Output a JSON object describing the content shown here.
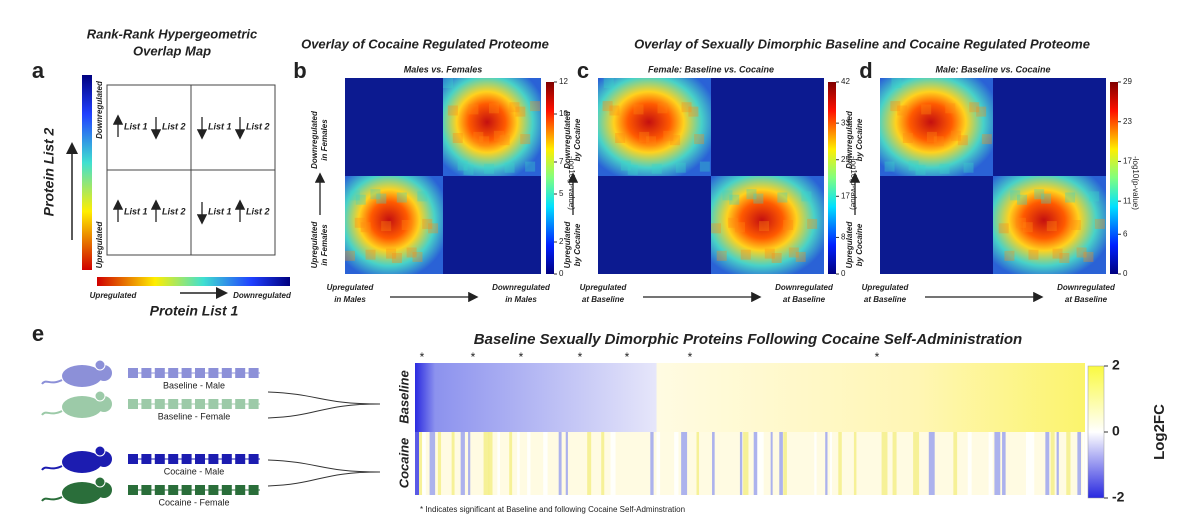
{
  "panel_a": {
    "letter": "a",
    "title_lines": [
      "Rank-Rank Hypergeometric",
      "Overlap Map"
    ],
    "y_axis_label": "Protein List 2",
    "y_top": "Downregulated",
    "y_bottom": "Upregulated",
    "x_axis_label": "Protein List 1",
    "x_left": "Upregulated",
    "x_right": "Downregulated",
    "quadrants": [
      {
        "list1": "List 1",
        "list2": "List 2"
      },
      {
        "list1": "List 1",
        "list2": "List 2"
      },
      {
        "list1": "List 1",
        "list2": "List 2"
      },
      {
        "list1": "List 1",
        "list2": "List 2"
      }
    ]
  },
  "overlay_titles": [
    "Overlay of Cocaine Regulated Proteome",
    "Overlay of Sexually Dimorphic Baseline and Cocaine Regulated Proteome"
  ],
  "heatmaps": [
    {
      "letter": "b",
      "subtitle": "Males vs. Females",
      "y_top_lines": [
        "Downregulated",
        "in Females"
      ],
      "y_bottom_lines": [
        "Upregulated",
        "in Females"
      ],
      "x_left_lines": [
        "Upregulated",
        "in Males"
      ],
      "x_right_lines": [
        "Downregulated",
        "in Males"
      ],
      "colorbar_label": "-log10(p-value)",
      "colorbar_ticks": [
        12,
        10,
        7,
        5,
        2,
        0
      ]
    },
    {
      "letter": "c",
      "subtitle": "Female: Baseline vs. Cocaine",
      "y_top_lines": [
        "Downregulated",
        "by Cocaine"
      ],
      "y_bottom_lines": [
        "Upregulated",
        "by Cocaine"
      ],
      "x_left_lines": [
        "Upregulated",
        "at Baseline"
      ],
      "x_right_lines": [
        "Downregulated",
        "at Baseline"
      ],
      "colorbar_label": "-log10(p-value)",
      "colorbar_ticks": [
        42,
        33,
        25,
        17,
        8,
        0
      ]
    },
    {
      "letter": "d",
      "subtitle": "Male: Baseline vs. Cocaine",
      "y_top_lines": [
        "Downregulated",
        "by Cocaine"
      ],
      "y_bottom_lines": [
        "Upregulated",
        "by Cocaine"
      ],
      "x_left_lines": [
        "Upregulated",
        "at Baseline"
      ],
      "x_right_lines": [
        "Downregulated",
        "at Baseline"
      ],
      "colorbar_label": "-log10(p-value)",
      "colorbar_ticks": [
        29,
        23,
        17,
        11,
        6,
        0
      ]
    }
  ],
  "panel_e": {
    "letter": "e",
    "title": "Baseline Sexually Dimorphic Proteins Following Cocaine Self-Administration",
    "rows": [
      "Baseline",
      "Cocaine"
    ],
    "colorbar_label": "Log2FC",
    "colorbar_ticks": [
      2,
      0,
      -2
    ],
    "legend": [
      {
        "label": "Baseline - Male",
        "color": "#8c90d8"
      },
      {
        "label": "Baseline - Female",
        "color": "#9ccaa8"
      },
      {
        "label": "Cocaine - Male",
        "color": "#1c1cb0"
      },
      {
        "label": "Cocaine - Female",
        "color": "#2a6e3a"
      }
    ],
    "markers": [
      "*",
      "*",
      "*",
      "*",
      "*",
      "*",
      "*"
    ],
    "footnote": "* Indicates significant at Baseline and following Cocaine Self-Adminstration"
  }
}
